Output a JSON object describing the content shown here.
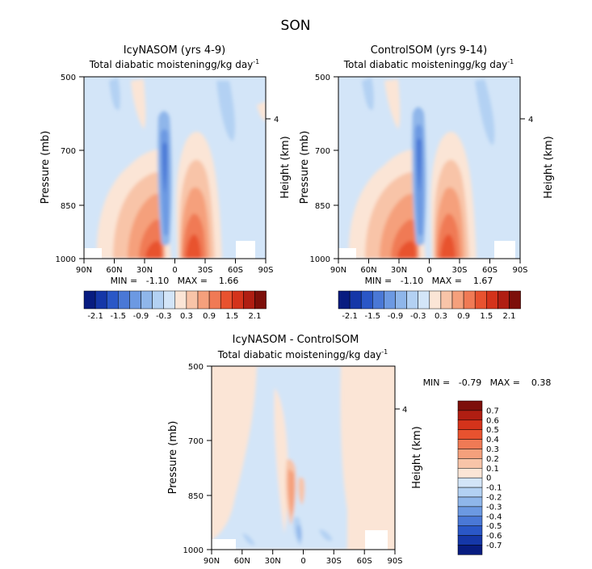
{
  "figure": {
    "title": "SON"
  },
  "colors": {
    "pos": [
      "#fbe5d6",
      "#f8c4a8",
      "#f5a07c",
      "#f07a55",
      "#e8522f",
      "#d4331b",
      "#b01e12",
      "#7d0f0a"
    ],
    "neg": [
      "#d3e5f8",
      "#b3d1f3",
      "#8fb6ea",
      "#6c99e2",
      "#4a78d6",
      "#2a57c7",
      "#1537a8",
      "#081c80"
    ],
    "background": "#ffffff"
  },
  "chart_data": [
    {
      "type": "heatmap",
      "title": "IcyNASOM (yrs 4-9)",
      "subtitle": "Total diabatic moistening",
      "units": "g/kg day",
      "units_exp": "-1",
      "ylabel": "Pressure (mb)",
      "ylabel_right": "Height (km)",
      "xlabel": "",
      "x_ticks": [
        "90N",
        "60N",
        "30N",
        "0",
        "30S",
        "60S",
        "90S"
      ],
      "x_range": [
        90,
        -90
      ],
      "y_ticks": [
        "500",
        "700",
        "850",
        "1000"
      ],
      "y_range": [
        500,
        1000
      ],
      "y_scale": "log",
      "right_ticks": [
        "4"
      ],
      "min_max_text": "MIN =   -1.10   MAX =    1.66",
      "min": -1.1,
      "max": 1.66,
      "colorbar": {
        "labels": [
          "-2.1",
          "-1.5",
          "-0.9",
          "-0.3",
          "0.3",
          "0.9",
          "1.5",
          "2.1"
        ],
        "orientation": "horizontal"
      },
      "features": [
        {
          "kind": "plume",
          "sign": "neg",
          "lat": -5,
          "p_top": 640,
          "p_bot": 960,
          "peak": -1.1
        },
        {
          "kind": "plume",
          "sign": "pos",
          "lat": 22,
          "p_top": 560,
          "p_bot": 1000,
          "peak": 1.66
        },
        {
          "kind": "plume",
          "sign": "pos",
          "lat": -25,
          "p_top": 570,
          "p_bot": 1000,
          "peak": 1.4
        }
      ]
    },
    {
      "type": "heatmap",
      "title": "ControlSOM (yrs 9-14)",
      "subtitle": "Total diabatic moistening",
      "units": "g/kg day",
      "units_exp": "-1",
      "ylabel": "Pressure (mb)",
      "ylabel_right": "Height (km)",
      "xlabel": "",
      "x_ticks": [
        "90N",
        "60N",
        "30N",
        "0",
        "30S",
        "60S",
        "90S"
      ],
      "x_range": [
        90,
        -90
      ],
      "y_ticks": [
        "500",
        "700",
        "850",
        "1000"
      ],
      "y_range": [
        500,
        1000
      ],
      "y_scale": "log",
      "right_ticks": [
        "4"
      ],
      "min_max_text": "MIN =   -1.10   MAX =    1.67",
      "min": -1.1,
      "max": 1.67,
      "colorbar": {
        "labels": [
          "-2.1",
          "-1.5",
          "-0.9",
          "-0.3",
          "0.3",
          "0.9",
          "1.5",
          "2.1"
        ],
        "orientation": "horizontal"
      },
      "features": [
        {
          "kind": "plume",
          "sign": "neg",
          "lat": -5,
          "p_top": 640,
          "p_bot": 960,
          "peak": -1.1
        },
        {
          "kind": "plume",
          "sign": "pos",
          "lat": 22,
          "p_top": 560,
          "p_bot": 1000,
          "peak": 1.67
        },
        {
          "kind": "plume",
          "sign": "pos",
          "lat": -25,
          "p_top": 570,
          "p_bot": 1000,
          "peak": 1.45
        }
      ]
    },
    {
      "type": "heatmap",
      "title": "IcyNASOM - ControlSOM",
      "subtitle": "Total diabatic moistening",
      "units": "g/kg day",
      "units_exp": "-1",
      "ylabel": "Pressure (mb)",
      "ylabel_right": "Height (km)",
      "xlabel": "",
      "x_ticks": [
        "90N",
        "60N",
        "30N",
        "0",
        "30S",
        "60S",
        "90S"
      ],
      "x_range": [
        90,
        -90
      ],
      "y_ticks": [
        "500",
        "700",
        "850",
        "1000"
      ],
      "y_range": [
        500,
        1000
      ],
      "y_scale": "log",
      "right_ticks": [
        "4"
      ],
      "min_max_text": "MIN =   -0.79   MAX =    0.38",
      "min": -0.79,
      "max": 0.38,
      "colorbar": {
        "labels": [
          "0.7",
          "0.6",
          "0.5",
          "0.4",
          "0.3",
          "0.2",
          "0.1",
          "0",
          "-0.1",
          "-0.2",
          "-0.3",
          "-0.4",
          "-0.5",
          "-0.6",
          "-0.7"
        ],
        "orientation": "vertical"
      },
      "features": [
        {
          "kind": "plume",
          "sign": "pos",
          "lat": -12,
          "p_top": 700,
          "p_bot": 950,
          "peak": 0.38
        },
        {
          "kind": "plume",
          "sign": "neg",
          "lat": 0,
          "p_top": 870,
          "p_bot": 1000,
          "peak": -0.79
        }
      ]
    }
  ]
}
